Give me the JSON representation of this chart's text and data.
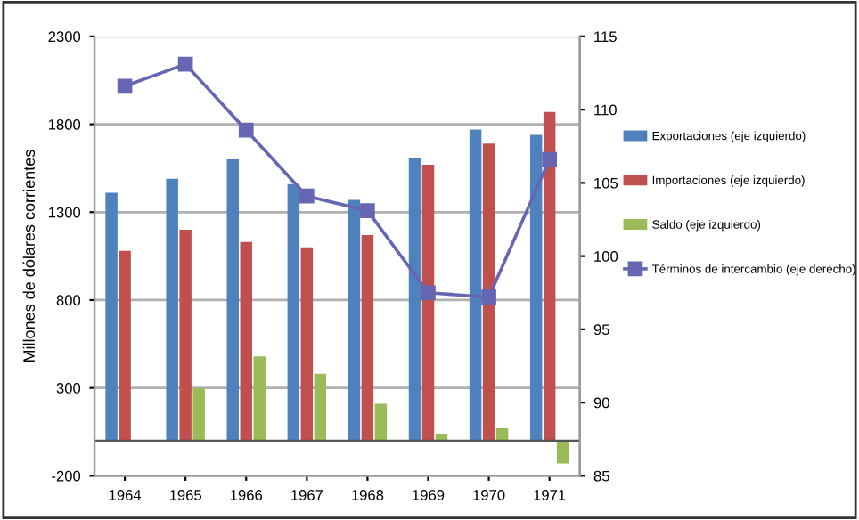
{
  "chart_data": {
    "type": "bar",
    "ylabel": "Millones de dólares corrientes",
    "categories": [
      "1964",
      "1965",
      "1966",
      "1967",
      "1968",
      "1969",
      "1970",
      "1971"
    ],
    "series": [
      {
        "name": "Exportaciones (eje izquierdo)",
        "color": "#4f81bd",
        "values": [
          1410,
          1490,
          1600,
          1460,
          1370,
          1610,
          1770,
          1740
        ]
      },
      {
        "name": "Importaciones (eje izquierdo)",
        "color": "#c0504d",
        "values": [
          1080,
          1200,
          1130,
          1100,
          1170,
          1570,
          1690,
          1870
        ]
      },
      {
        "name": "Saldo (eje izquierdo)",
        "color": "#9bbb59",
        "values": [
          null,
          300,
          480,
          380,
          210,
          40,
          70,
          -130
        ]
      },
      {
        "name": "Términos de intercambio (eje derecho)",
        "color": "#6666b3",
        "type": "line",
        "axis": "y2",
        "marker": "square",
        "values": [
          111.6,
          113.1,
          108.6,
          104.1,
          103.1,
          97.5,
          97.2,
          106.6
        ]
      }
    ],
    "ylim": [
      -200,
      2300
    ],
    "yticks": [
      -200,
      300,
      800,
      1300,
      1800,
      2300
    ],
    "y2lim": [
      85,
      115
    ],
    "y2ticks": [
      85,
      90,
      95,
      100,
      105,
      110,
      115
    ],
    "grid": "y",
    "legend": "right"
  }
}
